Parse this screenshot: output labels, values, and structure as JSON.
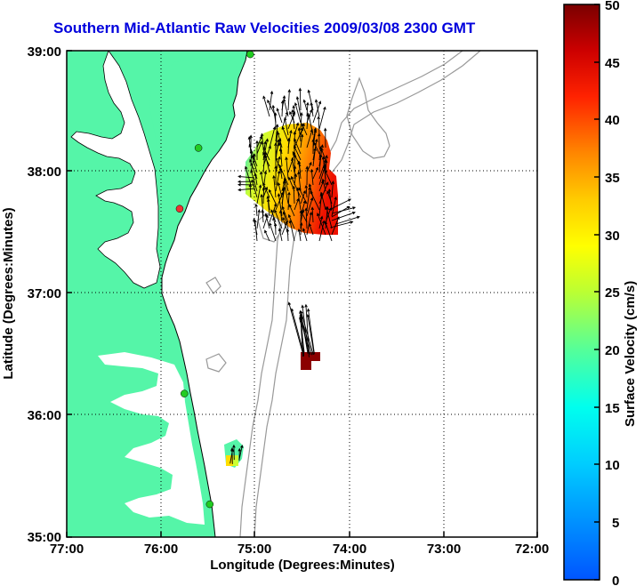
{
  "title": "Southern Mid-Atlantic Raw Velocities 2009/03/08 2300 GMT",
  "xlabel": "Longitude (Degrees:Minutes)",
  "ylabel": "Latitude (Degrees:Minutes)",
  "x_ticks": [
    "77:00",
    "76:00",
    "75:00",
    "74:00",
    "73:00",
    "72:00"
  ],
  "y_ticks": [
    "39:00",
    "38:00",
    "37:00",
    "36:00",
    "35:00"
  ],
  "colorbar": {
    "label": "Surface Velocity (cm/s)",
    "ticks": [
      "50",
      "45",
      "40",
      "35",
      "30",
      "25",
      "20",
      "15",
      "10",
      "5",
      "0"
    ],
    "range": [
      0,
      50
    ]
  },
  "colors": {
    "land": "#55f5a8",
    "water": "#ffffff",
    "bathymetry": "#999999",
    "title": "#0000dd",
    "station": "#22cc22",
    "station_alert": "#ee3333",
    "cluster_south": "#8b0000"
  },
  "map_extent": {
    "lon": [
      -77,
      -72
    ],
    "lat": [
      35,
      39
    ]
  },
  "stations": [
    {
      "lon": -75.05,
      "lat": 38.97,
      "status": "ok"
    },
    {
      "lon": -75.6,
      "lat": 38.2,
      "status": "ok"
    },
    {
      "lon": -75.8,
      "lat": 37.7,
      "status": "alert"
    },
    {
      "lon": -75.75,
      "lat": 36.18,
      "status": "ok"
    },
    {
      "lon": -75.48,
      "lat": 35.27,
      "status": "ok"
    }
  ]
}
